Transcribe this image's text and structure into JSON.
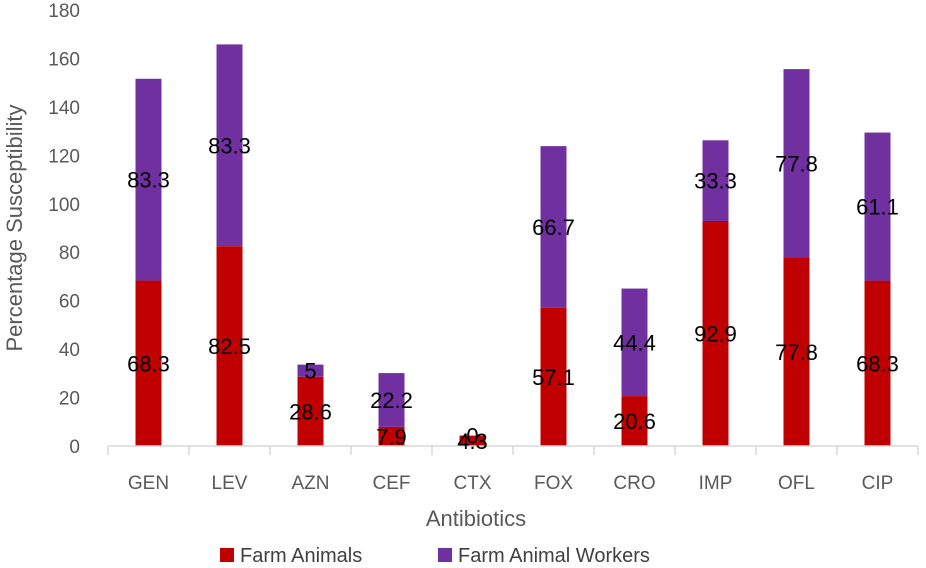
{
  "chart_data": {
    "type": "bar",
    "stacked": true,
    "categories": [
      "GEN",
      "LEV",
      "AZN",
      "CEF",
      "CTX",
      "FOX",
      "CRO",
      "IMP",
      "OFL",
      "CIP"
    ],
    "series": [
      {
        "name": "Farm Animals",
        "color": "#c00000",
        "values": [
          68.3,
          82.5,
          28.6,
          7.9,
          4.3,
          57.1,
          20.6,
          92.9,
          77.8,
          68.3
        ]
      },
      {
        "name": "Farm Animal Workers",
        "color": "#7030a0",
        "values": [
          83.3,
          83.3,
          5,
          22.2,
          0,
          66.7,
          44.4,
          33.3,
          77.8,
          61.1
        ]
      }
    ],
    "xlabel": "Antibiotics",
    "ylabel": "Percentage Susceptibility",
    "ylim": [
      0,
      180
    ],
    "yticks": [
      0,
      20,
      40,
      60,
      80,
      100,
      120,
      140,
      160,
      180
    ],
    "grid": false,
    "legend_position": "bottom"
  }
}
